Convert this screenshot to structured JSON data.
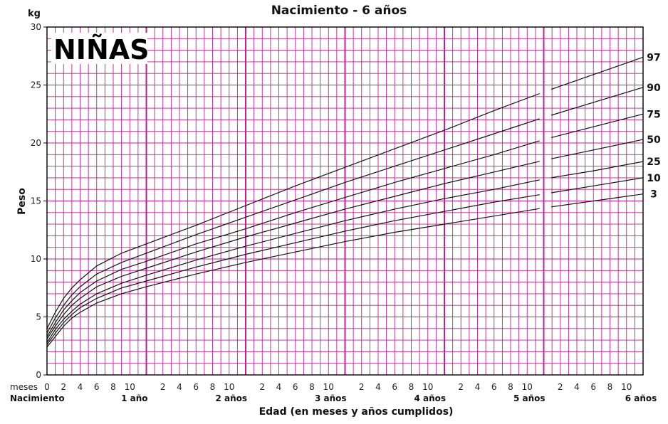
{
  "chart_data": {
    "type": "line",
    "title": "Nacimiento - 6 años",
    "ylabel": "Peso",
    "yunit": "kg",
    "xlabel": "Edad (en meses y años cumplidos)",
    "badge": "NIÑAS",
    "ylim": [
      0,
      30
    ],
    "yticks": [
      0,
      5,
      10,
      15,
      20,
      25,
      30
    ],
    "xlim_months": [
      0,
      72
    ],
    "month_tick_prefix": "meses",
    "month_ticks": [
      "0",
      "2",
      "4",
      "6",
      "8",
      "10",
      "2",
      "4",
      "6",
      "8",
      "10",
      "2",
      "4",
      "6",
      "8",
      "10",
      "2",
      "4",
      "6",
      "8",
      "10",
      "2",
      "4",
      "6",
      "8",
      "10",
      "2",
      "4",
      "6",
      "8",
      "10"
    ],
    "year_labels": [
      "Nacimiento",
      "1 año",
      "2 años",
      "3 años",
      "4 años",
      "5 años",
      "6 años"
    ],
    "grid": true,
    "x_months": [
      0,
      1,
      2,
      3,
      4,
      6,
      9,
      12,
      18,
      24,
      30,
      36,
      42,
      48,
      54,
      60,
      66,
      72
    ],
    "series": [
      {
        "name": "97",
        "values": [
          4.0,
          5.4,
          6.6,
          7.5,
          8.2,
          9.4,
          10.5,
          11.3,
          12.9,
          14.6,
          16.3,
          17.9,
          19.5,
          21.1,
          22.8,
          24.4,
          25.9,
          27.4
        ]
      },
      {
        "name": "90",
        "values": [
          3.6,
          4.9,
          6.0,
          6.9,
          7.6,
          8.7,
          9.7,
          10.5,
          12.1,
          13.6,
          15.1,
          16.6,
          18.0,
          19.4,
          20.8,
          22.2,
          23.5,
          24.8
        ]
      },
      {
        "name": "75",
        "values": [
          3.3,
          4.5,
          5.6,
          6.4,
          7.1,
          8.1,
          9.1,
          9.8,
          11.3,
          12.6,
          14.0,
          15.3,
          16.6,
          17.8,
          19.0,
          20.3,
          21.4,
          22.5
        ]
      },
      {
        "name": "50",
        "values": [
          3.1,
          4.2,
          5.2,
          6.0,
          6.6,
          7.6,
          8.5,
          9.2,
          10.6,
          11.9,
          13.1,
          14.3,
          15.4,
          16.5,
          17.5,
          18.5,
          19.4,
          20.3
        ]
      },
      {
        "name": "25",
        "values": [
          2.8,
          3.9,
          4.8,
          5.5,
          6.1,
          7.0,
          7.9,
          8.6,
          9.9,
          11.1,
          12.2,
          13.3,
          14.3,
          15.2,
          16.0,
          16.9,
          17.6,
          18.4
        ]
      },
      {
        "name": "10",
        "values": [
          2.6,
          3.6,
          4.5,
          5.2,
          5.8,
          6.6,
          7.5,
          8.1,
          9.3,
          10.4,
          11.4,
          12.4,
          13.3,
          14.1,
          14.9,
          15.6,
          16.3,
          17.0
        ]
      },
      {
        "name": "3",
        "values": [
          2.4,
          3.3,
          4.2,
          4.9,
          5.4,
          6.2,
          7.0,
          7.6,
          8.7,
          9.7,
          10.6,
          11.5,
          12.3,
          13.0,
          13.7,
          14.4,
          15.0,
          15.6
        ]
      }
    ]
  }
}
